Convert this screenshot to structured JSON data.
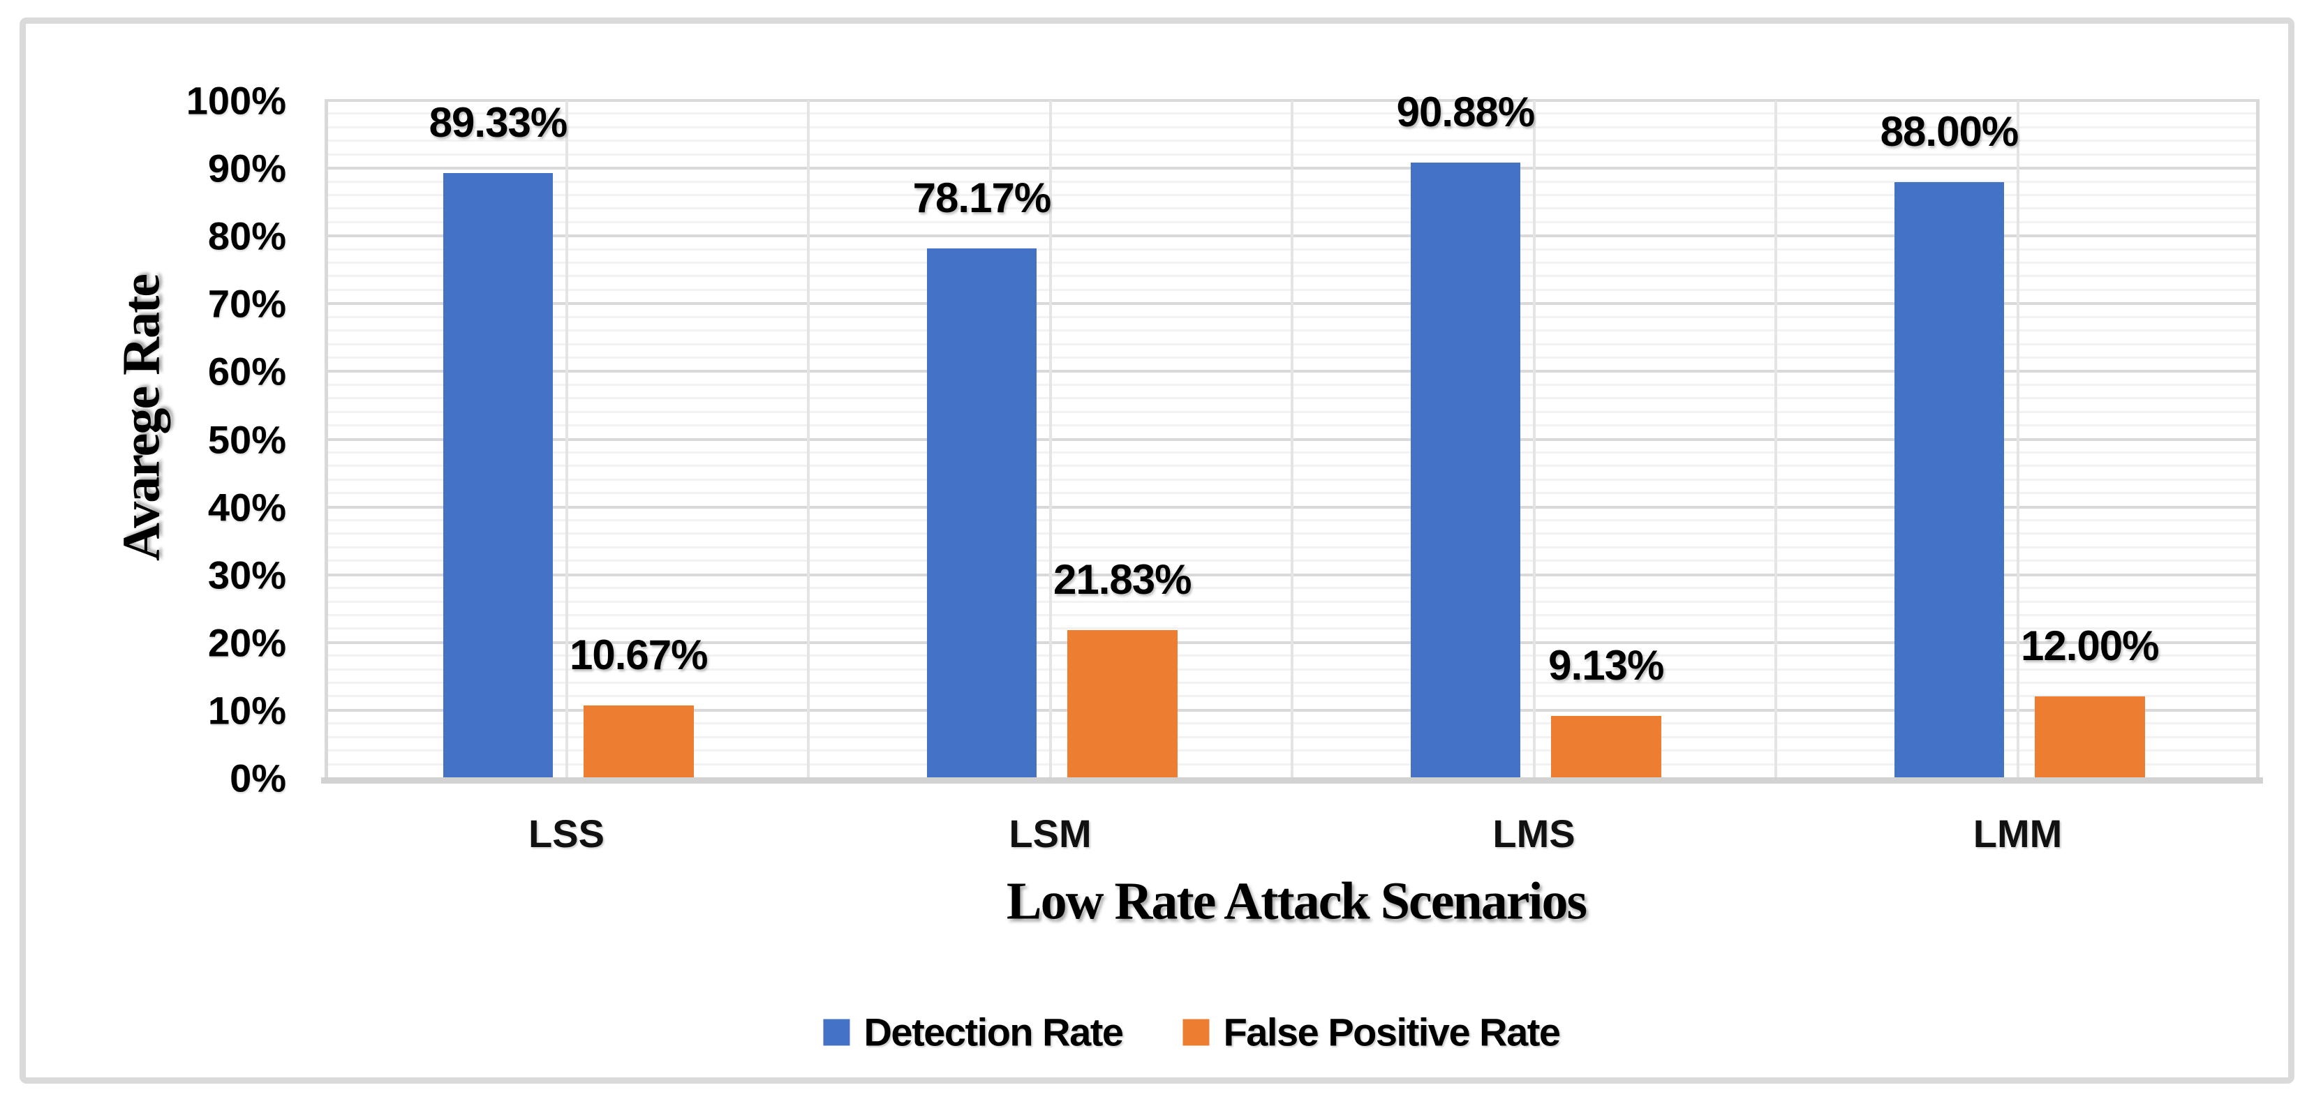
{
  "chart_data": {
    "type": "bar",
    "title": "",
    "categories": [
      "LSS",
      "LSM",
      "LMS",
      "LMM"
    ],
    "series": [
      {
        "name": "Detection Rate",
        "color": "#4472C4",
        "values": [
          89.33,
          78.17,
          90.88,
          88.0
        ],
        "data_labels": [
          "89.33%",
          "78.17%",
          "90.88%",
          "88.00%"
        ]
      },
      {
        "name": "False Positive Rate",
        "color": "#ED7D31",
        "values": [
          10.67,
          21.83,
          9.13,
          12.0
        ],
        "data_labels": [
          "10.67%",
          "21.83%",
          "9.13%",
          "12.00%"
        ]
      }
    ],
    "xlabel": "Low Rate Attack Scenarios",
    "ylabel": "Avarege Rate",
    "ylim": [
      0,
      100
    ],
    "y_major_step": 10,
    "y_minor_step": 2,
    "y_tick_labels": [
      "0%",
      "10%",
      "20%",
      "30%",
      "40%",
      "50%",
      "60%",
      "70%",
      "80%",
      "90%",
      "100%"
    ],
    "grid": {
      "horizontal_major": true,
      "horizontal_minor": true,
      "vertical_half_category": true
    },
    "legend_position": "bottom-center"
  },
  "legend": {
    "items": [
      {
        "label": "Detection Rate",
        "color": "#4472C4"
      },
      {
        "label": "False Positive Rate",
        "color": "#ED7D31"
      }
    ]
  },
  "colors": {
    "bar_blue": "#4472C4",
    "bar_orange": "#ED7D31",
    "grid_major": "#d9d9d9",
    "grid_minor": "#f2f2f2",
    "axis_line": "#d2d2d2",
    "frame_border": "#dadada",
    "text": "#000000"
  }
}
